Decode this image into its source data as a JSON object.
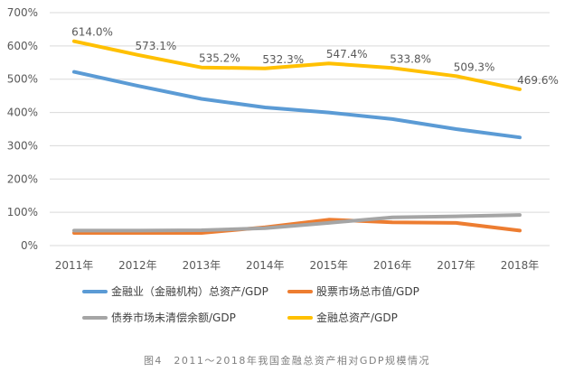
{
  "chart_data": {
    "type": "line",
    "categories": [
      "2011年",
      "2012年",
      "2013年",
      "2014年",
      "2015年",
      "2016年",
      "2017年",
      "2018年"
    ],
    "ylim": [
      0,
      700
    ],
    "yticks": [
      "0%",
      "100%",
      "200%",
      "300%",
      "400%",
      "500%",
      "600%",
      "700%"
    ],
    "grid": "horizontal",
    "legend_position": "bottom",
    "series": [
      {
        "name": "金融业（金融机构）总资产/GDP",
        "color": "#5b9bd5",
        "values": [
          522,
          480,
          441,
          415,
          400,
          380,
          350,
          325
        ],
        "labels": []
      },
      {
        "name": "股票市场总市值/GDP",
        "color": "#ed7d31",
        "values": [
          38,
          38,
          38,
          55,
          78,
          70,
          68,
          45
        ],
        "labels": []
      },
      {
        "name": "债券市场未清偿余额/GDP",
        "color": "#a5a5a5",
        "values": [
          45,
          45,
          46,
          52,
          68,
          85,
          88,
          92
        ],
        "labels": []
      },
      {
        "name": "金融总资产/GDP",
        "color": "#ffc000",
        "values": [
          614.0,
          573.1,
          535.2,
          532.3,
          547.4,
          533.8,
          509.3,
          469.6
        ],
        "labels": [
          "614.0%",
          "573.1%",
          "535.2%",
          "532.3%",
          "547.4%",
          "533.8%",
          "509.3%",
          "469.6%"
        ]
      }
    ]
  },
  "caption": "图4　2011～2018年我国金融总资产相对GDP规模情况"
}
